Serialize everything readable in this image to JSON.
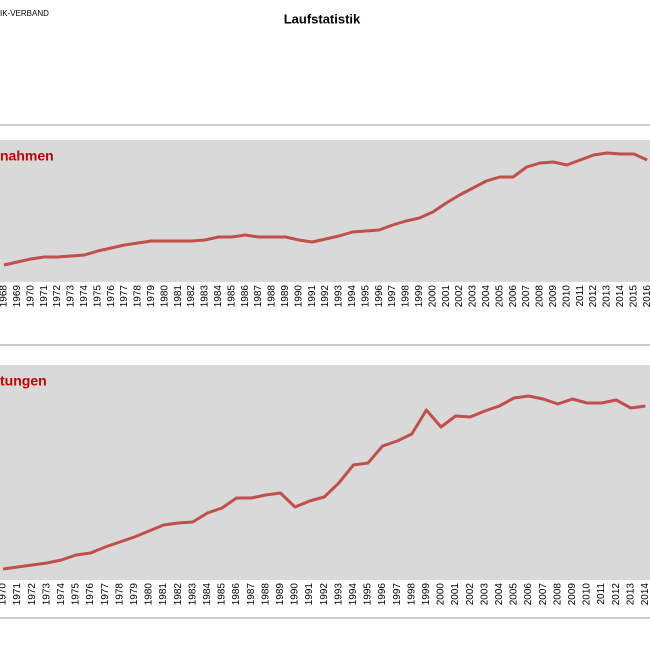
{
  "header": {
    "org": "IK-VERBAND",
    "title": "Laufstatistik"
  },
  "chart_data": [
    {
      "type": "line",
      "title": "nahmen",
      "color": "#c0504d",
      "ylim": [
        0,
        142
      ],
      "categories": [
        "1968",
        "1969",
        "1970",
        "1971",
        "1972",
        "1973",
        "1974",
        "1975",
        "1976",
        "1977",
        "1978",
        "1979",
        "1980",
        "1981",
        "1982",
        "1983",
        "1984",
        "1985",
        "1986",
        "1987",
        "1988",
        "1989",
        "1990",
        "1991",
        "1992",
        "1993",
        "1994",
        "1995",
        "1996",
        "1997",
        "1998",
        "1999",
        "2000",
        "2001",
        "2002",
        "2003",
        "2004",
        "2005",
        "2006",
        "2007",
        "2008",
        "2009",
        "2010",
        "2011",
        "2012",
        "2013",
        "2014",
        "2015",
        "2016"
      ],
      "values": [
        17,
        20,
        23,
        25,
        25,
        26,
        27,
        31,
        34,
        37,
        39,
        41,
        41,
        41,
        41,
        42,
        45,
        45,
        47,
        45,
        45,
        45,
        42,
        40,
        43,
        46,
        50,
        51,
        52,
        57,
        61,
        64,
        70,
        79,
        87,
        94,
        101,
        105,
        105,
        115,
        119,
        120,
        117,
        122,
        127,
        129,
        128,
        128,
        122
      ]
    },
    {
      "type": "line",
      "title": "tungen",
      "color": "#c0504d",
      "ylim": [
        0,
        215
      ],
      "categories": [
        "1970",
        "1971",
        "1972",
        "1973",
        "1974",
        "1975",
        "1976",
        "1977",
        "1978",
        "1979",
        "1980",
        "1981",
        "1982",
        "1983",
        "1984",
        "1985",
        "1986",
        "1987",
        "1988",
        "1989",
        "1990",
        "1991",
        "1992",
        "1993",
        "1994",
        "1995",
        "1996",
        "1997",
        "1998",
        "1999",
        "2000",
        "2001",
        "2002",
        "2003",
        "2004",
        "2005",
        "2006",
        "2007",
        "2008",
        "2009",
        "2010",
        "2011",
        "2012",
        "2013",
        "2014"
      ],
      "values": [
        11,
        13,
        15,
        17,
        20,
        25,
        27,
        33,
        38,
        43,
        49,
        55,
        57,
        58,
        67,
        72,
        82,
        82,
        85,
        87,
        73,
        79,
        83,
        97,
        115,
        117,
        134,
        139,
        146,
        170,
        153,
        164,
        163,
        169,
        174,
        182,
        184,
        181,
        176,
        181,
        177,
        177,
        180,
        172,
        174
      ]
    }
  ]
}
